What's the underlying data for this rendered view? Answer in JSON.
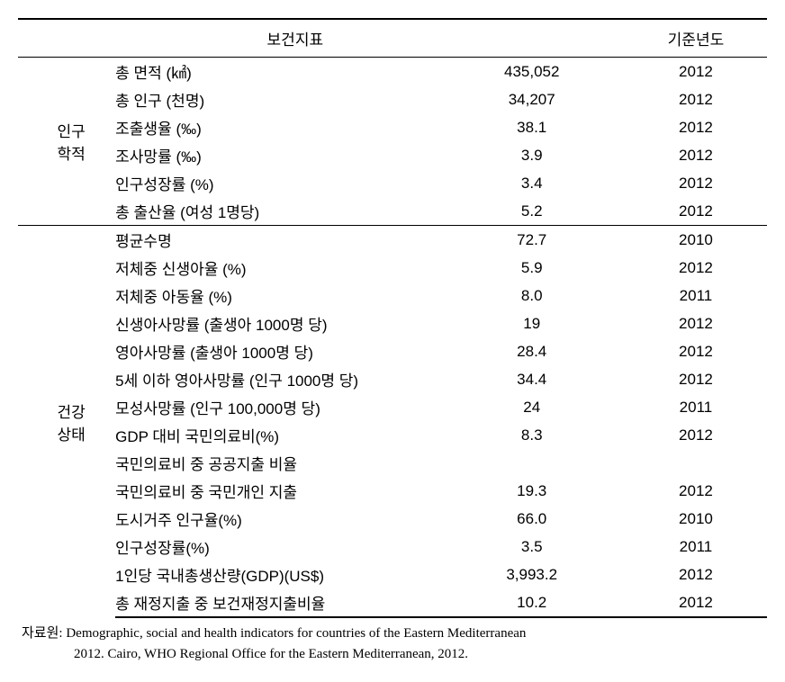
{
  "headers": {
    "indicator": "보건지표",
    "year": "기준년도"
  },
  "sections": [
    {
      "category": "인구\n학적",
      "rows": [
        {
          "indicator": "총 면적 (㎢)",
          "value": "435,052",
          "year": "2012"
        },
        {
          "indicator": "총 인구 (천명)",
          "value": "34,207",
          "year": "2012"
        },
        {
          "indicator": "조출생율 (‰)",
          "value": "38.1",
          "year": "2012"
        },
        {
          "indicator": "조사망률 (‰)",
          "value": "3.9",
          "year": "2012"
        },
        {
          "indicator": "인구성장률 (%)",
          "value": "3.4",
          "year": "2012"
        },
        {
          "indicator": "총 출산율 (여성 1명당)",
          "value": "5.2",
          "year": "2012"
        }
      ]
    },
    {
      "category": "건강\n상태",
      "rows": [
        {
          "indicator": "평균수명",
          "value": "72.7",
          "year": "2010"
        },
        {
          "indicator": "저체중 신생아율 (%)",
          "value": "5.9",
          "year": "2012"
        },
        {
          "indicator": "저체중 아동율 (%)",
          "value": "8.0",
          "year": "2011"
        },
        {
          "indicator": "신생아사망률 (출생아 1000명 당)",
          "value": "19",
          "year": "2012"
        },
        {
          "indicator": "영아사망률 (출생아 1000명 당)",
          "value": "28.4",
          "year": "2012"
        },
        {
          "indicator": "5세 이하 영아사망률 (인구 1000명 당)",
          "value": "34.4",
          "year": "2012"
        },
        {
          "indicator": "모성사망률 (인구 100,000명 당)",
          "value": "24",
          "year": "2011"
        },
        {
          "indicator": "GDP 대비 국민의료비(%)",
          "value": "8.3",
          "year": "2012"
        },
        {
          "indicator": "국민의료비 중 공공지출 비율",
          "value": "",
          "year": ""
        },
        {
          "indicator": "국민의료비 중 국민개인 지출",
          "value": "19.3",
          "year": "2012"
        },
        {
          "indicator": "도시거주 인구율(%)",
          "value": "66.0",
          "year": "2010"
        },
        {
          "indicator": "인구성장률(%)",
          "value": "3.5",
          "year": "2011"
        },
        {
          "indicator": "1인당 국내총생산량(GDP)(US$)",
          "value": "3,993.2",
          "year": "2012"
        },
        {
          "indicator": "총 재정지출 중 보건재정지출비율",
          "value": "10.2",
          "year": "2012"
        }
      ]
    }
  ],
  "source": {
    "label": "자료원:",
    "line1": "Demographic, social and health indicators for countries of the Eastern Mediterranean",
    "line2": "2012. Cairo, WHO Regional Office for the Eastern Mediterranean, 2012."
  }
}
